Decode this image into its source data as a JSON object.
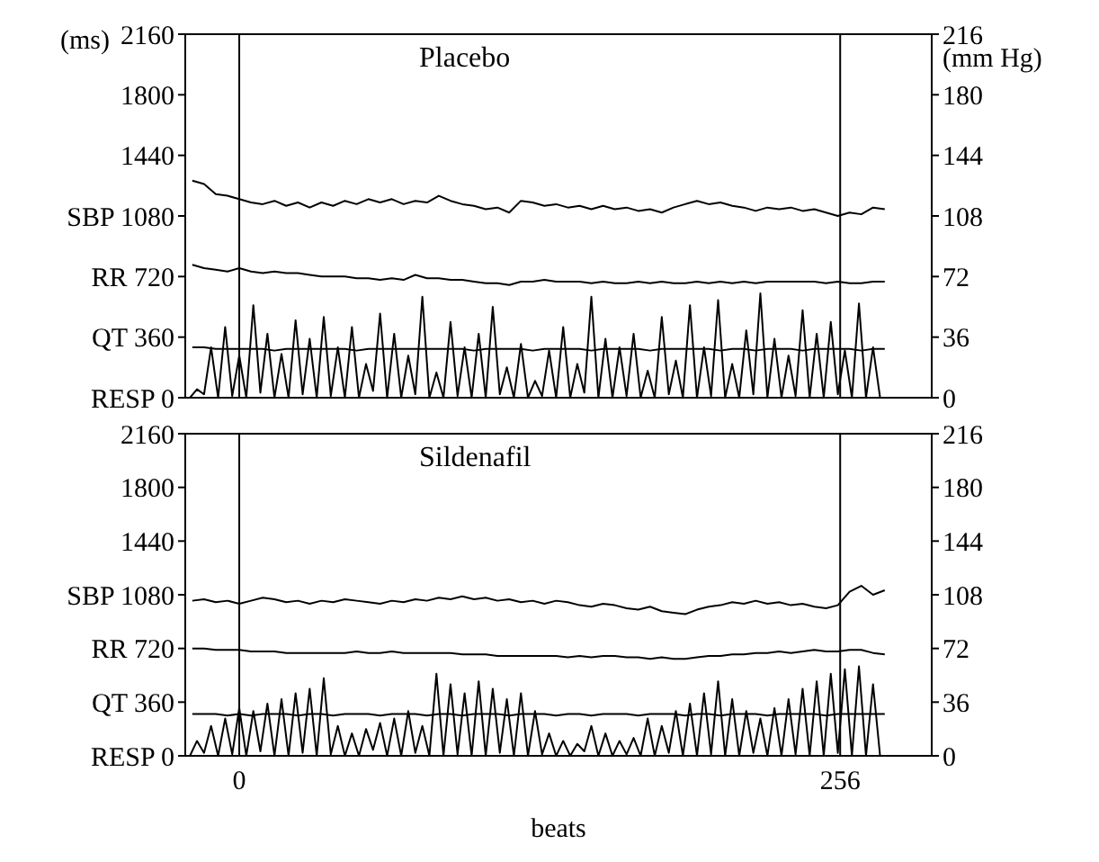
{
  "chart_data": [
    {
      "type": "line",
      "title": "Placebo",
      "ylabel": "(ms)",
      "y2label": "(mm Hg)",
      "xlim": [
        -23,
        295
      ],
      "ylim": [
        0,
        2160
      ],
      "yticks": [
        {
          "value": 0,
          "label": "RESP 0"
        },
        {
          "value": 360,
          "label": "QT 360"
        },
        {
          "value": 720,
          "label": "RR 720"
        },
        {
          "value": 1080,
          "label": "SBP 1080"
        },
        1440,
        1800,
        2160
      ],
      "y2lim": [
        0,
        216
      ],
      "y2ticks": [
        0,
        36,
        72,
        108,
        144,
        180,
        216
      ],
      "tick_labels": "y",
      "x": [
        -20,
        -15,
        -10,
        -5,
        0,
        5,
        10,
        15,
        20,
        25,
        30,
        35,
        40,
        45,
        50,
        55,
        60,
        65,
        70,
        75,
        80,
        85,
        90,
        95,
        100,
        105,
        110,
        115,
        120,
        125,
        130,
        135,
        140,
        145,
        150,
        155,
        160,
        165,
        170,
        175,
        180,
        185,
        190,
        195,
        200,
        205,
        210,
        215,
        220,
        225,
        230,
        235,
        240,
        245,
        250,
        255,
        260,
        265,
        270,
        275
      ],
      "ref_lines": [
        {
          "axis": "x",
          "value": 0,
          "color": "#000000"
        },
        {
          "axis": "x",
          "value": 256,
          "color": "#000000"
        }
      ],
      "series": [
        {
          "color": "#000000",
          "axis": "y2",
          "values": [
            129,
            127,
            121,
            120,
            118,
            116,
            115,
            117,
            114,
            116,
            113,
            116,
            114,
            117,
            115,
            118,
            116,
            118,
            115,
            117,
            116,
            120,
            117,
            115,
            114,
            112,
            113,
            110,
            117,
            116,
            114,
            115,
            113,
            114,
            112,
            114,
            112,
            113,
            111,
            112,
            110,
            113,
            115,
            117,
            115,
            116,
            114,
            113,
            111,
            113,
            112,
            113,
            111,
            112,
            110,
            108,
            110,
            109,
            113,
            112
          ]
        },
        {
          "color": "#000000",
          "values": [
            790,
            770,
            760,
            750,
            770,
            750,
            740,
            750,
            740,
            740,
            730,
            720,
            720,
            720,
            710,
            710,
            700,
            710,
            700,
            730,
            710,
            710,
            700,
            700,
            690,
            680,
            680,
            670,
            690,
            690,
            700,
            690,
            690,
            690,
            680,
            690,
            680,
            680,
            690,
            680,
            690,
            680,
            680,
            690,
            680,
            690,
            680,
            690,
            680,
            690,
            690,
            690,
            690,
            690,
            680,
            690,
            680,
            680,
            690,
            690
          ]
        },
        {
          "color": "#000000",
          "values": [
            300,
            300,
            290,
            290,
            290,
            290,
            290,
            280,
            290,
            290,
            290,
            290,
            290,
            290,
            280,
            290,
            290,
            290,
            290,
            290,
            290,
            290,
            290,
            290,
            280,
            290,
            290,
            290,
            290,
            280,
            290,
            290,
            290,
            290,
            280,
            290,
            290,
            290,
            290,
            280,
            290,
            290,
            290,
            290,
            290,
            280,
            290,
            290,
            280,
            290,
            290,
            290,
            280,
            290,
            290,
            290,
            290,
            280,
            290,
            290
          ]
        },
        {
          "color": "#000000",
          "x": [
            -21,
            -18,
            -15,
            -12,
            -9,
            -6,
            -3,
            0,
            3,
            6,
            9,
            12,
            15,
            18,
            21,
            24,
            27,
            30,
            33,
            36,
            39,
            42,
            45,
            48,
            51,
            54,
            57,
            60,
            63,
            66,
            69,
            72,
            75,
            78,
            81,
            84,
            87,
            90,
            93,
            96,
            99,
            102,
            105,
            108,
            111,
            114,
            117,
            120,
            123,
            126,
            129,
            132,
            135,
            138,
            141,
            144,
            147,
            150,
            153,
            156,
            159,
            162,
            165,
            168,
            171,
            174,
            177,
            180,
            183,
            186,
            189,
            192,
            195,
            198,
            201,
            204,
            207,
            210,
            213,
            216,
            219,
            222,
            225,
            228,
            231,
            234,
            237,
            240,
            243,
            246,
            249,
            252,
            255,
            258,
            261,
            264,
            267,
            270,
            273
          ],
          "values": [
            0,
            50,
            20,
            300,
            0,
            420,
            10,
            250,
            0,
            550,
            30,
            380,
            0,
            260,
            0,
            460,
            20,
            350,
            0,
            480,
            10,
            300,
            0,
            420,
            0,
            200,
            40,
            500,
            0,
            380,
            0,
            250,
            20,
            600,
            0,
            150,
            0,
            450,
            10,
            300,
            0,
            380,
            0,
            540,
            20,
            180,
            0,
            320,
            0,
            100,
            10,
            280,
            0,
            420,
            0,
            200,
            30,
            600,
            0,
            350,
            0,
            300,
            10,
            380,
            0,
            160,
            0,
            480,
            20,
            220,
            0,
            550,
            0,
            300,
            10,
            580,
            0,
            200,
            0,
            400,
            20,
            620,
            0,
            350,
            0,
            250,
            10,
            520,
            0,
            380,
            0,
            450,
            20,
            280,
            0,
            560,
            0,
            300,
            0
          ]
        }
      ]
    },
    {
      "type": "line",
      "title": "Sildenafil",
      "xlabel": "beats",
      "xlim": [
        -23,
        295
      ],
      "xticks": [
        0,
        256
      ],
      "ylim": [
        0,
        2160
      ],
      "yticks": [
        {
          "value": 0,
          "label": "RESP 0"
        },
        {
          "value": 360,
          "label": "QT 360"
        },
        {
          "value": 720,
          "label": "RR 720"
        },
        {
          "value": 1080,
          "label": "SBP 1080"
        },
        1440,
        1800,
        2160
      ],
      "y2lim": [
        0,
        216
      ],
      "y2ticks": [
        0,
        36,
        72,
        108,
        144,
        180,
        216
      ],
      "x": [
        -20,
        -15,
        -10,
        -5,
        0,
        5,
        10,
        15,
        20,
        25,
        30,
        35,
        40,
        45,
        50,
        55,
        60,
        65,
        70,
        75,
        80,
        85,
        90,
        95,
        100,
        105,
        110,
        115,
        120,
        125,
        130,
        135,
        140,
        145,
        150,
        155,
        160,
        165,
        170,
        175,
        180,
        185,
        190,
        195,
        200,
        205,
        210,
        215,
        220,
        225,
        230,
        235,
        240,
        245,
        250,
        255,
        260,
        265,
        270,
        275
      ],
      "ref_lines": [
        {
          "axis": "x",
          "value": 0,
          "color": "#000000"
        },
        {
          "axis": "x",
          "value": 256,
          "color": "#000000"
        }
      ],
      "series": [
        {
          "color": "#000000",
          "axis": "y2",
          "values": [
            104,
            105,
            103,
            104,
            102,
            104,
            106,
            105,
            103,
            104,
            102,
            104,
            103,
            105,
            104,
            103,
            102,
            104,
            103,
            105,
            104,
            106,
            105,
            107,
            105,
            106,
            104,
            105,
            103,
            104,
            102,
            104,
            103,
            101,
            100,
            102,
            101,
            99,
            98,
            100,
            97,
            96,
            95,
            98,
            100,
            101,
            103,
            102,
            104,
            102,
            103,
            101,
            102,
            100,
            99,
            101,
            110,
            114,
            108,
            111
          ]
        },
        {
          "color": "#000000",
          "values": [
            720,
            720,
            710,
            710,
            710,
            700,
            700,
            700,
            690,
            690,
            690,
            690,
            690,
            690,
            700,
            690,
            690,
            700,
            690,
            690,
            690,
            690,
            690,
            680,
            680,
            680,
            670,
            670,
            670,
            670,
            670,
            670,
            660,
            670,
            660,
            670,
            670,
            660,
            660,
            650,
            660,
            650,
            650,
            660,
            670,
            670,
            680,
            680,
            690,
            690,
            700,
            690,
            700,
            710,
            700,
            700,
            710,
            710,
            690,
            680
          ]
        },
        {
          "color": "#000000",
          "values": [
            280,
            280,
            280,
            270,
            280,
            270,
            280,
            280,
            280,
            270,
            280,
            280,
            270,
            280,
            280,
            280,
            270,
            280,
            280,
            280,
            270,
            280,
            280,
            270,
            280,
            280,
            280,
            270,
            280,
            280,
            280,
            270,
            280,
            280,
            270,
            280,
            280,
            280,
            270,
            280,
            280,
            280,
            270,
            280,
            280,
            270,
            280,
            280,
            280,
            270,
            280,
            280,
            280,
            280,
            270,
            280,
            280,
            280,
            280,
            280
          ]
        },
        {
          "color": "#000000",
          "x": [
            -21,
            -18,
            -15,
            -12,
            -9,
            -6,
            -3,
            0,
            3,
            6,
            9,
            12,
            15,
            18,
            21,
            24,
            27,
            30,
            33,
            36,
            39,
            42,
            45,
            48,
            51,
            54,
            57,
            60,
            63,
            66,
            69,
            72,
            75,
            78,
            81,
            84,
            87,
            90,
            93,
            96,
            99,
            102,
            105,
            108,
            111,
            114,
            117,
            120,
            123,
            126,
            129,
            132,
            135,
            138,
            141,
            144,
            147,
            150,
            153,
            156,
            159,
            162,
            165,
            168,
            171,
            174,
            177,
            180,
            183,
            186,
            189,
            192,
            195,
            198,
            201,
            204,
            207,
            210,
            213,
            216,
            219,
            222,
            225,
            228,
            231,
            234,
            237,
            240,
            243,
            246,
            249,
            252,
            255,
            258,
            261,
            264,
            267,
            270,
            273
          ],
          "values": [
            0,
            100,
            20,
            200,
            0,
            250,
            10,
            320,
            0,
            300,
            30,
            350,
            0,
            380,
            0,
            420,
            20,
            450,
            0,
            520,
            10,
            200,
            0,
            150,
            0,
            180,
            40,
            220,
            0,
            250,
            0,
            300,
            20,
            200,
            0,
            550,
            0,
            480,
            10,
            420,
            0,
            500,
            0,
            450,
            20,
            380,
            0,
            420,
            0,
            300,
            10,
            150,
            0,
            100,
            0,
            80,
            30,
            200,
            0,
            150,
            0,
            100,
            10,
            120,
            0,
            250,
            0,
            200,
            20,
            300,
            0,
            350,
            0,
            420,
            10,
            500,
            0,
            380,
            0,
            300,
            20,
            250,
            0,
            320,
            0,
            380,
            10,
            450,
            0,
            500,
            0,
            550,
            20,
            580,
            0,
            600,
            0,
            480,
            0
          ]
        }
      ]
    }
  ]
}
